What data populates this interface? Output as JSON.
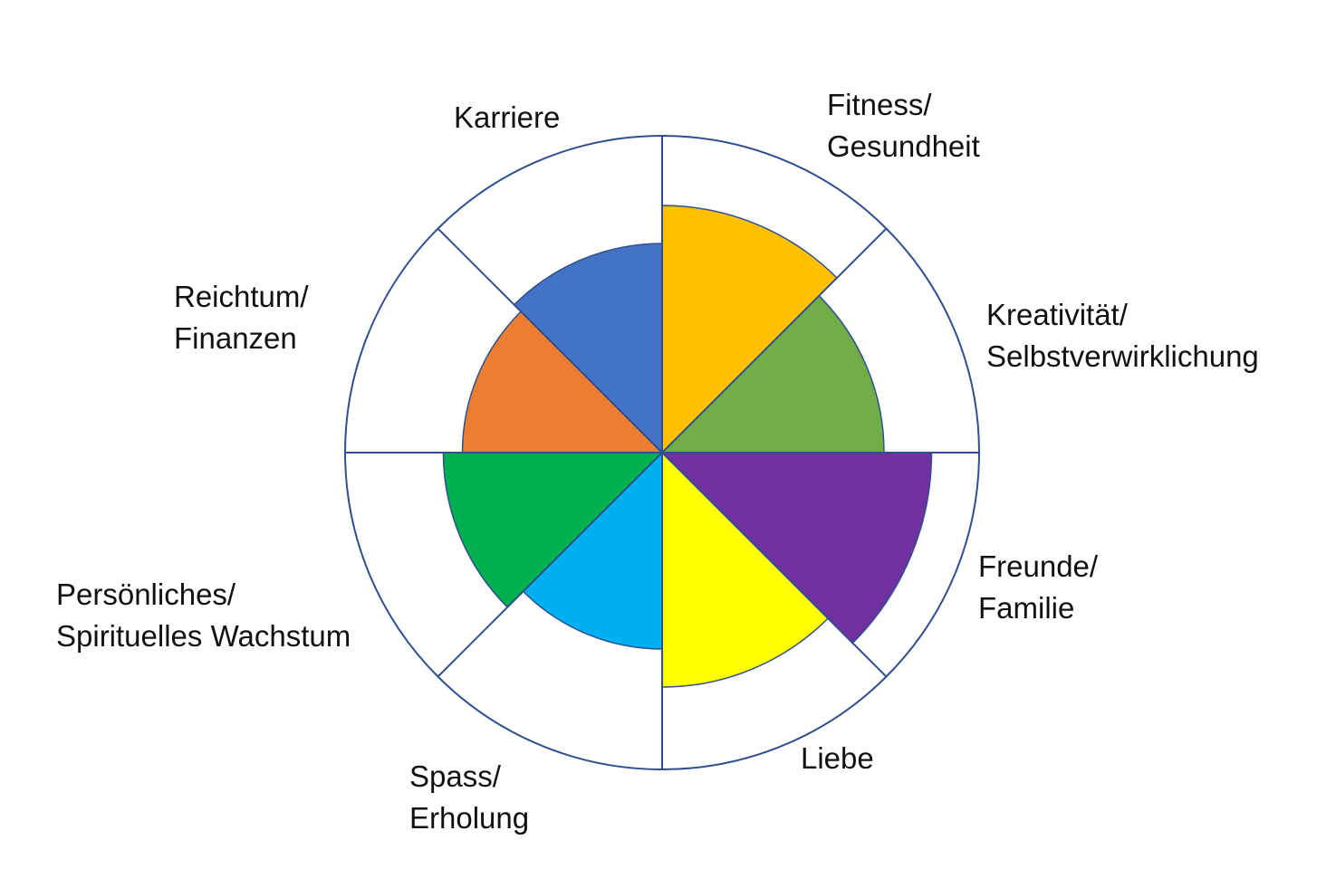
{
  "wheel": {
    "outline_color": "#2F4F8F",
    "segments": [
      {
        "label_lines": [
          "Fitness/",
          "Gesundheit"
        ],
        "color": "#FFC000",
        "fill_fraction": 0.78
      },
      {
        "label_lines": [
          "Kreativität/",
          "Selbstverwirklichung"
        ],
        "color": "#70AD47",
        "fill_fraction": 0.7
      },
      {
        "label_lines": [
          "Freunde/",
          "Familie"
        ],
        "color": "#7030A0",
        "fill_fraction": 0.85
      },
      {
        "label_lines": [
          "Liebe"
        ],
        "color": "#FFFF00",
        "fill_fraction": 0.74
      },
      {
        "label_lines": [
          "Spass/",
          "Erholung"
        ],
        "color": "#00B0F0",
        "fill_fraction": 0.62
      },
      {
        "label_lines": [
          "Persönliches/",
          "Spirituelles Wachstum"
        ],
        "color": "#00B050",
        "fill_fraction": 0.69
      },
      {
        "label_lines": [
          "Reichtum/",
          "Finanzen"
        ],
        "color": "#ED7D31",
        "fill_fraction": 0.63
      },
      {
        "label_lines": [
          "Karriere"
        ],
        "color": "#4472C4",
        "fill_fraction": 0.66
      }
    ]
  }
}
